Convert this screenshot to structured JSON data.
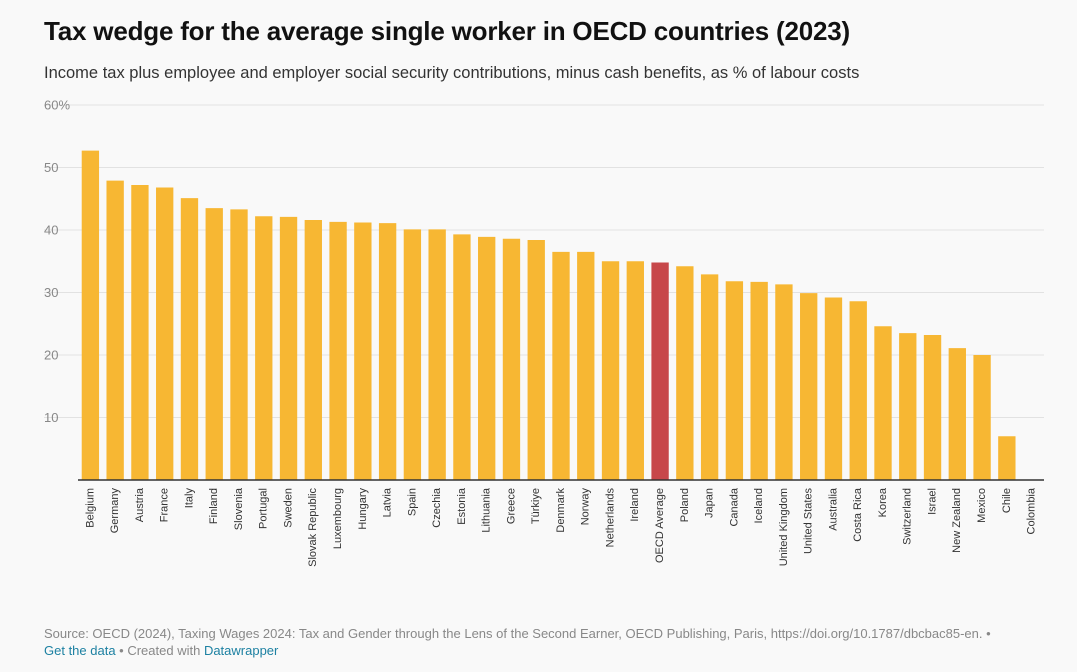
{
  "header": {
    "title": "Tax wedge for the average single worker in OECD countries (2023)",
    "subtitle": "Income tax plus employee and employer social security contributions, minus cash benefits, as % of labour costs"
  },
  "chart_data": {
    "type": "bar",
    "categories": [
      "Belgium",
      "Germany",
      "Austria",
      "France",
      "Italy",
      "Finland",
      "Slovenia",
      "Portugal",
      "Sweden",
      "Slovak Republic",
      "Luxembourg",
      "Hungary",
      "Latvia",
      "Spain",
      "Czechia",
      "Estonia",
      "Lithuania",
      "Greece",
      "Türkiye",
      "Denmark",
      "Norway",
      "Netherlands",
      "Ireland",
      "OECD Average",
      "Poland",
      "Japan",
      "Canada",
      "Iceland",
      "United Kingdom",
      "United States",
      "Australia",
      "Costa Rica",
      "Korea",
      "Switzerland",
      "Israel",
      "New Zealand",
      "Mexico",
      "Chile",
      "Colombia"
    ],
    "values": [
      52.7,
      47.9,
      47.2,
      46.8,
      45.1,
      43.5,
      43.3,
      42.2,
      42.1,
      41.6,
      41.3,
      41.2,
      41.1,
      40.1,
      40.1,
      39.3,
      38.9,
      38.6,
      38.4,
      36.5,
      36.5,
      35.0,
      35.0,
      34.8,
      34.2,
      32.9,
      31.8,
      31.7,
      31.3,
      29.9,
      29.2,
      28.6,
      24.6,
      23.5,
      23.2,
      21.1,
      20.0,
      7.0,
      0.0
    ],
    "highlight": "OECD Average",
    "colors": {
      "bar": "#f7b733",
      "highlight": "#c7474a"
    },
    "yticks": [
      {
        "value": 10,
        "label": "10"
      },
      {
        "value": 20,
        "label": "20"
      },
      {
        "value": 30,
        "label": "30"
      },
      {
        "value": 40,
        "label": "40"
      },
      {
        "value": 50,
        "label": "50"
      },
      {
        "value": 60,
        "label": "60%"
      }
    ],
    "ylim": [
      0,
      60
    ],
    "grid": true,
    "title": "Tax wedge for the average single worker in OECD countries (2023)",
    "xlabel": "",
    "ylabel": ""
  },
  "footer": {
    "source": "Source: OECD (2024), Taxing Wages 2024: Tax and Gender through the Lens of the Second Earner, OECD Publishing, Paris, https://doi.org/10.1787/dbcbac85-en. •",
    "get_data": "Get the data",
    "separator": " • Created with ",
    "datawrapper": "Datawrapper"
  }
}
